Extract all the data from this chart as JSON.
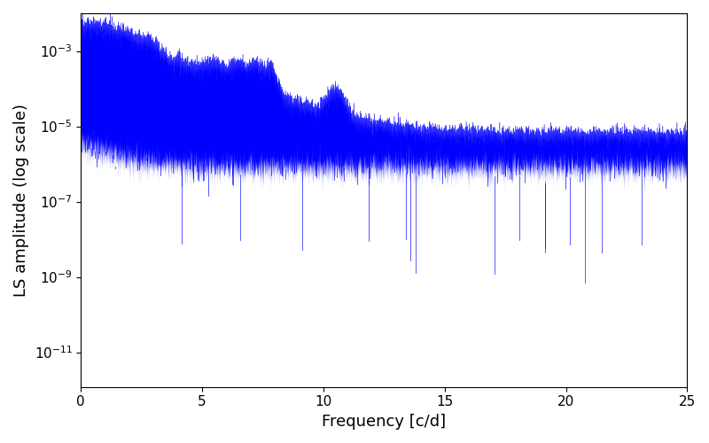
{
  "xlabel": "Frequency [c/d]",
  "ylabel": "LS amplitude (log scale)",
  "xlim": [
    0,
    25
  ],
  "ylim_low": 1.2e-12,
  "ylim_high": 0.01,
  "color": "#0000ff",
  "background_color": "#ffffff",
  "figsize": [
    8.0,
    5.0
  ],
  "dpi": 100,
  "seed": 12345,
  "n_points": 8000,
  "freq_max": 25.0,
  "yticks": [
    1e-11,
    1e-09,
    1e-07,
    1e-05,
    0.001
  ]
}
